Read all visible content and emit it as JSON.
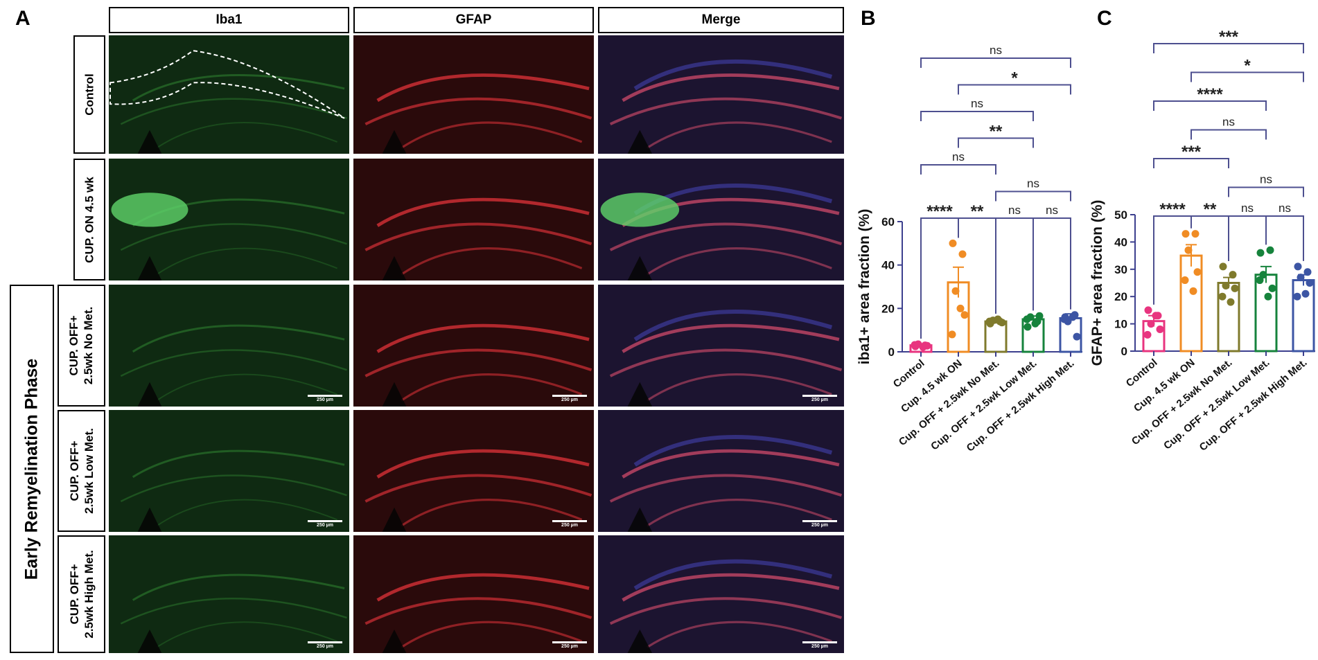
{
  "panel_labels": {
    "a": "A",
    "b": "B",
    "c": "C"
  },
  "column_headers": [
    "Iba1",
    "GFAP",
    "Merge"
  ],
  "rows": [
    {
      "label_lines": [
        "Control"
      ]
    },
    {
      "label_lines": [
        "CUP. ON 4.5 wk"
      ]
    },
    {
      "label_lines": [
        "CUP. OFF+",
        "2.5wk No Met."
      ]
    },
    {
      "label_lines": [
        "CUP. OFF+",
        "2.5wk Low Met."
      ]
    },
    {
      "label_lines": [
        "CUP. OFF+",
        "2.5wk High Met."
      ]
    }
  ],
  "phase_label": "Early Remyelination Phase",
  "scale_bar_label": "250 µm",
  "colors": {
    "control": "#e8347f",
    "cup_on": "#f08c24",
    "no_met": "#7f7a2c",
    "low_met": "#16833c",
    "high_met": "#3c55a4",
    "bracket": "#4d4f8f",
    "axis": "#3c3f8e"
  },
  "chart_data": [
    {
      "type": "bar",
      "panel": "B",
      "ylabel": "iba1+ area fraction (%)",
      "categories": [
        "Control",
        "Cup. 4.5 wk ON",
        "Cup. OFF + 2.5wk No Met.",
        "Cup. OFF + 2.5wk Low Met.",
        "Cup. OFF + 2.5wk High Met."
      ],
      "values": [
        3,
        32,
        14,
        15,
        15.5
      ],
      "sem": [
        0.5,
        7,
        1,
        1.5,
        2
      ],
      "points": [
        [
          2.5,
          3,
          3.5,
          2.8,
          3.2,
          2.2
        ],
        [
          50,
          45,
          28,
          17,
          8,
          20
        ],
        [
          13,
          14,
          14.5,
          13.5,
          14,
          15
        ],
        [
          11.5,
          14,
          16,
          16.5,
          15,
          13
        ],
        [
          16,
          17,
          14,
          7,
          15,
          16
        ]
      ],
      "ylim": [
        0,
        60
      ],
      "yticks": [
        0,
        20,
        40,
        60
      ],
      "comparisons": [
        {
          "a": 0,
          "b": 1,
          "label": "****"
        },
        {
          "a": 1,
          "b": 2,
          "label": "**"
        },
        {
          "a": 2,
          "b": 3,
          "label": "ns"
        },
        {
          "a": 3,
          "b": 4,
          "label": "ns"
        },
        {
          "a": 2,
          "b": 4,
          "label": "ns"
        },
        {
          "a": 0,
          "b": 2,
          "label": "ns"
        },
        {
          "a": 1,
          "b": 3,
          "label": "**"
        },
        {
          "a": 0,
          "b": 3,
          "label": "ns"
        },
        {
          "a": 1,
          "b": 4,
          "label": "*"
        },
        {
          "a": 0,
          "b": 4,
          "label": "ns"
        }
      ]
    },
    {
      "type": "bar",
      "panel": "C",
      "ylabel": "GFAP+ area fraction (%)",
      "categories": [
        "Control",
        "Cup. 4.5 wk ON",
        "Cup. OFF + 2.5wk No Met.",
        "Cup. OFF + 2.5wk Low Met.",
        "Cup. OFF + 2.5wk High Met."
      ],
      "values": [
        11,
        35,
        25,
        28,
        26
      ],
      "sem": [
        2,
        4,
        2,
        3,
        2
      ],
      "points": [
        [
          15,
          13,
          10,
          8,
          6,
          13
        ],
        [
          43,
          43,
          37,
          29,
          26,
          22
        ],
        [
          31,
          28,
          24,
          23,
          20,
          18
        ],
        [
          36,
          37,
          28,
          23,
          26,
          20
        ],
        [
          31,
          29,
          27,
          25,
          20,
          21
        ]
      ],
      "ylim": [
        0,
        50
      ],
      "yticks": [
        0,
        10,
        20,
        30,
        40,
        50
      ],
      "comparisons": [
        {
          "a": 0,
          "b": 1,
          "label": "****"
        },
        {
          "a": 1,
          "b": 2,
          "label": "**"
        },
        {
          "a": 2,
          "b": 3,
          "label": "ns"
        },
        {
          "a": 3,
          "b": 4,
          "label": "ns"
        },
        {
          "a": 2,
          "b": 4,
          "label": "ns"
        },
        {
          "a": 0,
          "b": 2,
          "label": "***"
        },
        {
          "a": 1,
          "b": 3,
          "label": "ns"
        },
        {
          "a": 0,
          "b": 3,
          "label": "****"
        },
        {
          "a": 1,
          "b": 4,
          "label": "*"
        },
        {
          "a": 0,
          "b": 4,
          "label": "***"
        }
      ]
    }
  ]
}
